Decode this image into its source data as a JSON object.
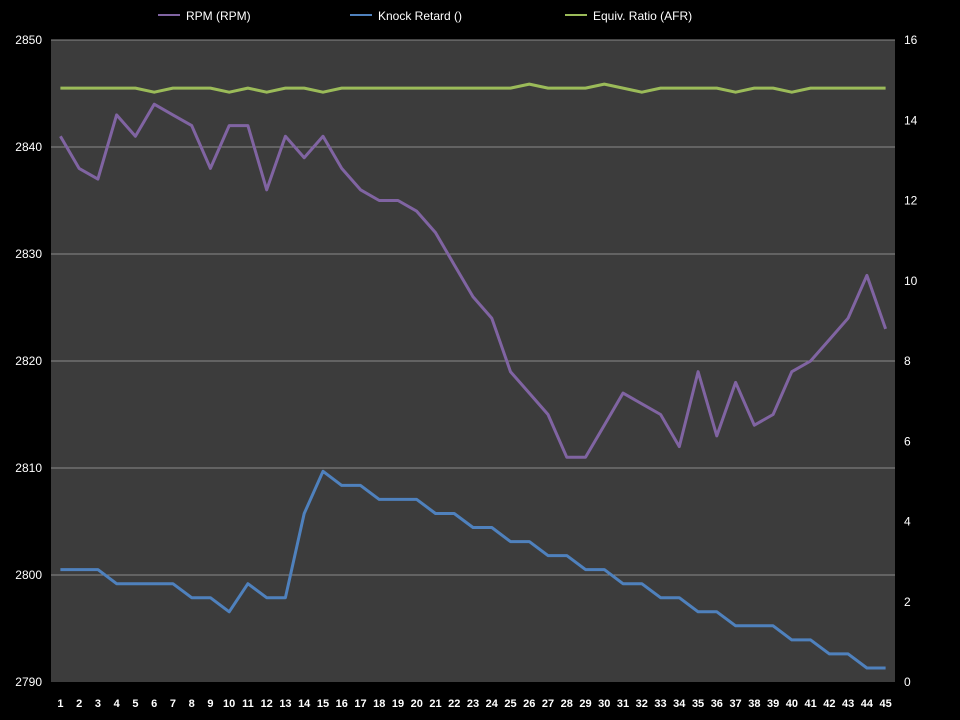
{
  "chart_data": {
    "type": "line",
    "x": [
      1,
      2,
      3,
      4,
      5,
      6,
      7,
      8,
      9,
      10,
      11,
      12,
      13,
      14,
      15,
      16,
      17,
      18,
      19,
      20,
      21,
      22,
      23,
      24,
      25,
      26,
      27,
      28,
      29,
      30,
      31,
      32,
      33,
      34,
      35,
      36,
      37,
      38,
      39,
      40,
      41,
      42,
      43,
      44,
      45
    ],
    "series": [
      {
        "name": "RPM (RPM)",
        "axis": "left",
        "color": "#8064A2",
        "values": [
          2841,
          2838,
          2837,
          2843,
          2841,
          2844,
          2843,
          2842,
          2838,
          2842,
          2842,
          2836,
          2841,
          2839,
          2841,
          2838,
          2836,
          2835,
          2835,
          2834,
          2832,
          2829,
          2826,
          2824,
          2819,
          2817,
          2815,
          2811,
          2811,
          2814,
          2817,
          2816,
          2815,
          2812,
          2819,
          2813,
          2818,
          2814,
          2815,
          2819,
          2820,
          2822,
          2824,
          2828,
          2823
        ]
      },
      {
        "name": "Knock Retard ()",
        "axis": "right",
        "color": "#4F81BD",
        "values": [
          2.8,
          2.8,
          2.8,
          2.45,
          2.45,
          2.45,
          2.45,
          2.1,
          2.1,
          1.75,
          2.45,
          2.1,
          2.1,
          4.2,
          5.25,
          4.9,
          4.9,
          4.55,
          4.55,
          4.55,
          4.2,
          4.2,
          3.85,
          3.85,
          3.5,
          3.5,
          3.15,
          3.15,
          2.8,
          2.8,
          2.45,
          2.45,
          2.1,
          2.1,
          1.75,
          1.75,
          1.4,
          1.4,
          1.4,
          1.05,
          1.05,
          0.7,
          0.7,
          0.35,
          0.35
        ]
      },
      {
        "name": "Equiv. Ratio (AFR)",
        "axis": "right",
        "color": "#9BBB59",
        "values": [
          14.8,
          14.8,
          14.8,
          14.8,
          14.8,
          14.7,
          14.8,
          14.8,
          14.8,
          14.7,
          14.8,
          14.7,
          14.8,
          14.8,
          14.7,
          14.8,
          14.8,
          14.8,
          14.8,
          14.8,
          14.8,
          14.8,
          14.8,
          14.8,
          14.8,
          14.9,
          14.8,
          14.8,
          14.8,
          14.9,
          14.8,
          14.7,
          14.8,
          14.8,
          14.8,
          14.8,
          14.7,
          14.8,
          14.8,
          14.7,
          14.8,
          14.8,
          14.8,
          14.8,
          14.8
        ]
      }
    ],
    "y_left": {
      "ylim": [
        2790,
        2850
      ],
      "ticks": [
        2790,
        2800,
        2810,
        2820,
        2830,
        2840,
        2850
      ]
    },
    "y_right": {
      "ylim": [
        0,
        16
      ],
      "ticks": [
        0,
        2,
        4,
        6,
        8,
        10,
        12,
        14,
        16
      ]
    },
    "xlabel": "",
    "ylabel": "",
    "grid": true,
    "legend_position": "top",
    "colors": {
      "background": "#000000",
      "plot_area": "#3C3C3C",
      "gridline": "#8A8A8A",
      "text": "#FFFFFF"
    }
  }
}
